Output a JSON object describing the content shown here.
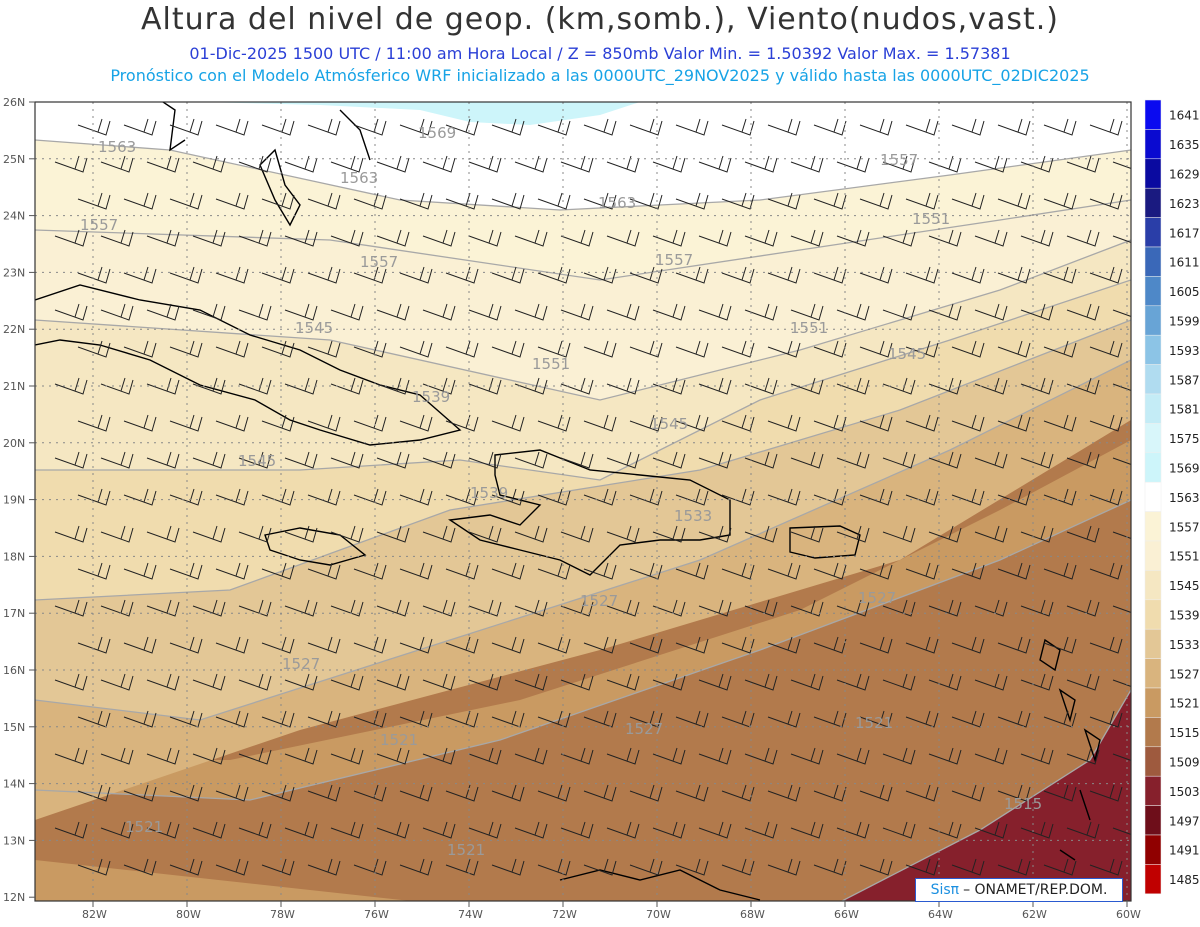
{
  "title": "Altura del nivel de geop. (km,somb.), Viento(nudos,vast.)",
  "subtitle_line1": "01-Dic-2025  1500 UTC / 11:00 am Hora Local / Z = 850mb    Valor Min. = 1.50392  Valor Max. = 1.57381",
  "subtitle_line2": "Pronóstico con el Modelo Atmósferico WRF inicializado a las 0000UTC_29NOV2025 y válido hasta las  0000UTC_02DIC2025",
  "lat_labels": [
    "26N",
    "25N",
    "24N",
    "23N",
    "22N",
    "21N",
    "20N",
    "19N",
    "18N",
    "17N",
    "16N",
    "15N",
    "14N",
    "13N",
    "12N"
  ],
  "lon_labels": [
    "82W",
    "80W",
    "78W",
    "76W",
    "74W",
    "72W",
    "70W",
    "68W",
    "66W",
    "64W",
    "62W",
    "60W"
  ],
  "colorbar": {
    "levels": [
      "1641",
      "1635",
      "1629",
      "1623",
      "1617",
      "1611",
      "1605",
      "1599",
      "1593",
      "1587",
      "1581",
      "1575",
      "1569",
      "1563",
      "1557",
      "1551",
      "1545",
      "1539",
      "1533",
      "1527",
      "1521",
      "1515",
      "1509",
      "1503",
      "1497",
      "1491",
      "1485"
    ],
    "colors": [
      "#0a0af0",
      "#0a0ad0",
      "#0a0aa0",
      "#1a1a80",
      "#2a3ea8",
      "#3a68b8",
      "#4e88c8",
      "#68a4d6",
      "#8cc4e6",
      "#b0dcf0",
      "#c4ecf6",
      "#d8f6fa",
      "#cdf5fa",
      "#ffffff",
      "#fbf3d6",
      "#faf0d4",
      "#f5e7c2",
      "#f0dcae",
      "#e3c796",
      "#d9b47e",
      "#c99a62",
      "#b27a4c",
      "#9e5a3e",
      "#86202c",
      "#6e0e1a",
      "#900000",
      "#c00000"
    ]
  },
  "contour_labels": [
    "1569",
    "1563",
    "1563",
    "1563",
    "1557",
    "1557",
    "1557",
    "1557",
    "1551",
    "1551",
    "1551",
    "1545",
    "1545",
    "1545",
    "1545",
    "1539",
    "1539",
    "1533",
    "1527",
    "1527",
    "1527",
    "1527",
    "1521",
    "1521",
    "1521",
    "1521",
    "1515"
  ],
  "credit": {
    "brand": "Sisπ",
    "text": "– ONAMET/REP.DOM."
  }
}
